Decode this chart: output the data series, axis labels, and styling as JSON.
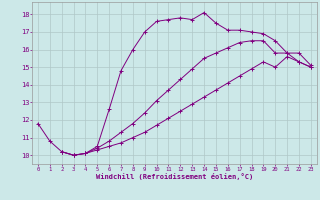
{
  "xlabel": "Windchill (Refroidissement éolien,°C)",
  "background_color": "#cce8e8",
  "line_color": "#800080",
  "grid_color": "#b0c8c8",
  "xlim": [
    -0.5,
    23.5
  ],
  "ylim": [
    9.5,
    18.7
  ],
  "xticks": [
    0,
    1,
    2,
    3,
    4,
    5,
    6,
    7,
    8,
    9,
    10,
    11,
    12,
    13,
    14,
    15,
    16,
    17,
    18,
    19,
    20,
    21,
    22,
    23
  ],
  "yticks": [
    10,
    11,
    12,
    13,
    14,
    15,
    16,
    17,
    18
  ],
  "curve1_x": [
    0,
    1,
    2,
    3,
    4,
    5,
    6,
    7,
    8,
    9,
    10,
    11,
    12,
    13,
    14,
    15,
    16,
    17,
    18,
    19,
    20,
    21,
    22,
    23
  ],
  "curve1_y": [
    11.8,
    10.8,
    10.2,
    10.0,
    10.1,
    10.5,
    12.6,
    14.8,
    16.0,
    17.0,
    17.6,
    17.7,
    17.8,
    17.7,
    18.1,
    17.5,
    17.1,
    17.1,
    17.0,
    16.9,
    16.5,
    15.8,
    15.8,
    15.1
  ],
  "curve2_x": [
    2,
    3,
    4,
    5,
    6,
    7,
    8,
    9,
    10,
    11,
    12,
    13,
    14,
    15,
    16,
    17,
    18,
    19,
    20,
    21,
    22,
    23
  ],
  "curve2_y": [
    10.2,
    10.0,
    10.1,
    10.4,
    10.8,
    11.3,
    11.8,
    12.4,
    13.1,
    13.7,
    14.3,
    14.9,
    15.5,
    15.8,
    16.1,
    16.4,
    16.5,
    16.5,
    15.8,
    15.8,
    15.3,
    15.0
  ],
  "curve3_x": [
    2,
    3,
    4,
    5,
    6,
    7,
    8,
    9,
    10,
    11,
    12,
    13,
    14,
    15,
    16,
    17,
    18,
    19,
    20,
    21,
    22,
    23
  ],
  "curve3_y": [
    10.2,
    10.0,
    10.1,
    10.3,
    10.5,
    10.7,
    11.0,
    11.3,
    11.7,
    12.1,
    12.5,
    12.9,
    13.3,
    13.7,
    14.1,
    14.5,
    14.9,
    15.3,
    15.0,
    15.6,
    15.3,
    15.0
  ]
}
